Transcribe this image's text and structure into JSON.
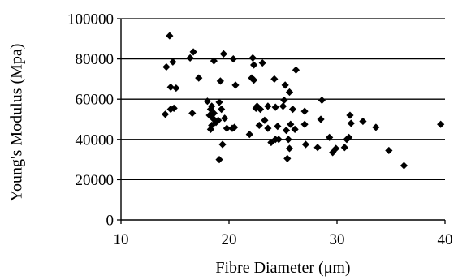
{
  "chart_data": {
    "type": "scatter",
    "title": "",
    "xlabel": "Fibre Diameter (μm)",
    "ylabel": "Young's Modulus (Mpa)",
    "xlim": [
      10,
      40
    ],
    "ylim": [
      0,
      100000
    ],
    "x_ticks": [
      10,
      20,
      30,
      40
    ],
    "x_tick_labels": [
      "10",
      "20",
      "30",
      "40"
    ],
    "y_ticks": [
      0,
      20000,
      40000,
      60000,
      80000,
      100000
    ],
    "y_tick_labels": [
      "0",
      "20000",
      "40000",
      "60000",
      "80000",
      "100000"
    ],
    "grid": "horizontal",
    "marker": "diamond",
    "marker_color": "#000000",
    "series": [
      {
        "points": [
          [
            14.5,
            91500
          ],
          [
            14.2,
            76000
          ],
          [
            14.8,
            78500
          ],
          [
            14.6,
            66000
          ],
          [
            15.1,
            65500
          ],
          [
            14.9,
            55500
          ],
          [
            14.6,
            55000
          ],
          [
            14.1,
            52500
          ],
          [
            16.4,
            80500
          ],
          [
            16.7,
            83500
          ],
          [
            17.2,
            70500
          ],
          [
            16.6,
            53000
          ],
          [
            18.0,
            59000
          ],
          [
            18.4,
            56500
          ],
          [
            18.3,
            55000
          ],
          [
            18.6,
            53000
          ],
          [
            18.2,
            52000
          ],
          [
            18.5,
            50500
          ],
          [
            18.8,
            48500
          ],
          [
            18.4,
            47000
          ],
          [
            18.3,
            45000
          ],
          [
            18.6,
            79000
          ],
          [
            19.5,
            82500
          ],
          [
            20.4,
            80000
          ],
          [
            19.2,
            69000
          ],
          [
            20.6,
            67000
          ],
          [
            19.1,
            58500
          ],
          [
            19.3,
            55000
          ],
          [
            19.6,
            50500
          ],
          [
            19.0,
            49500
          ],
          [
            19.8,
            45500
          ],
          [
            20.3,
            45500
          ],
          [
            20.5,
            46000
          ],
          [
            19.4,
            37500
          ],
          [
            19.1,
            30000
          ],
          [
            22.2,
            80500
          ],
          [
            22.3,
            77000
          ],
          [
            23.1,
            78000
          ],
          [
            22.1,
            70500
          ],
          [
            22.3,
            69500
          ],
          [
            22.6,
            56500
          ],
          [
            22.5,
            55500
          ],
          [
            22.9,
            55000
          ],
          [
            23.6,
            56500
          ],
          [
            24.3,
            56000
          ],
          [
            21.9,
            42500
          ],
          [
            22.8,
            47000
          ],
          [
            23.3,
            49500
          ],
          [
            23.6,
            45500
          ],
          [
            23.9,
            38500
          ],
          [
            24.3,
            40000
          ],
          [
            24.6,
            40000
          ],
          [
            24.5,
            46500
          ],
          [
            24.2,
            70000
          ],
          [
            25.2,
            67000
          ],
          [
            25.6,
            63500
          ],
          [
            26.2,
            74500
          ],
          [
            25.1,
            59500
          ],
          [
            25.0,
            56500
          ],
          [
            25.9,
            55000
          ],
          [
            25.3,
            44500
          ],
          [
            25.7,
            47500
          ],
          [
            26.1,
            45000
          ],
          [
            25.5,
            40000
          ],
          [
            25.6,
            35500
          ],
          [
            25.4,
            30500
          ],
          [
            27.0,
            54000
          ],
          [
            27.0,
            47500
          ],
          [
            27.1,
            37500
          ],
          [
            28.2,
            36000
          ],
          [
            28.6,
            59500
          ],
          [
            28.5,
            50000
          ],
          [
            29.3,
            41000
          ],
          [
            29.6,
            33500
          ],
          [
            29.9,
            35500
          ],
          [
            30.7,
            36000
          ],
          [
            30.9,
            40000
          ],
          [
            31.1,
            41000
          ],
          [
            31.2,
            52000
          ],
          [
            31.3,
            48000
          ],
          [
            32.4,
            49000
          ],
          [
            33.6,
            46000
          ],
          [
            34.8,
            34500
          ],
          [
            36.2,
            27000
          ],
          [
            39.6,
            47500
          ]
        ]
      }
    ]
  }
}
